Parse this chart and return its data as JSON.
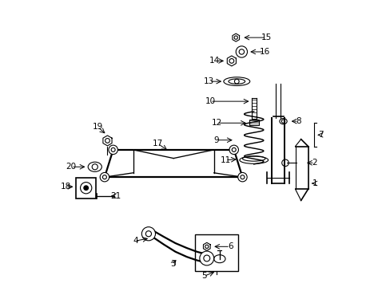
{
  "title": "",
  "bg_color": "#ffffff",
  "line_color": "#000000",
  "fig_width": 4.89,
  "fig_height": 3.6,
  "dpi": 100
}
